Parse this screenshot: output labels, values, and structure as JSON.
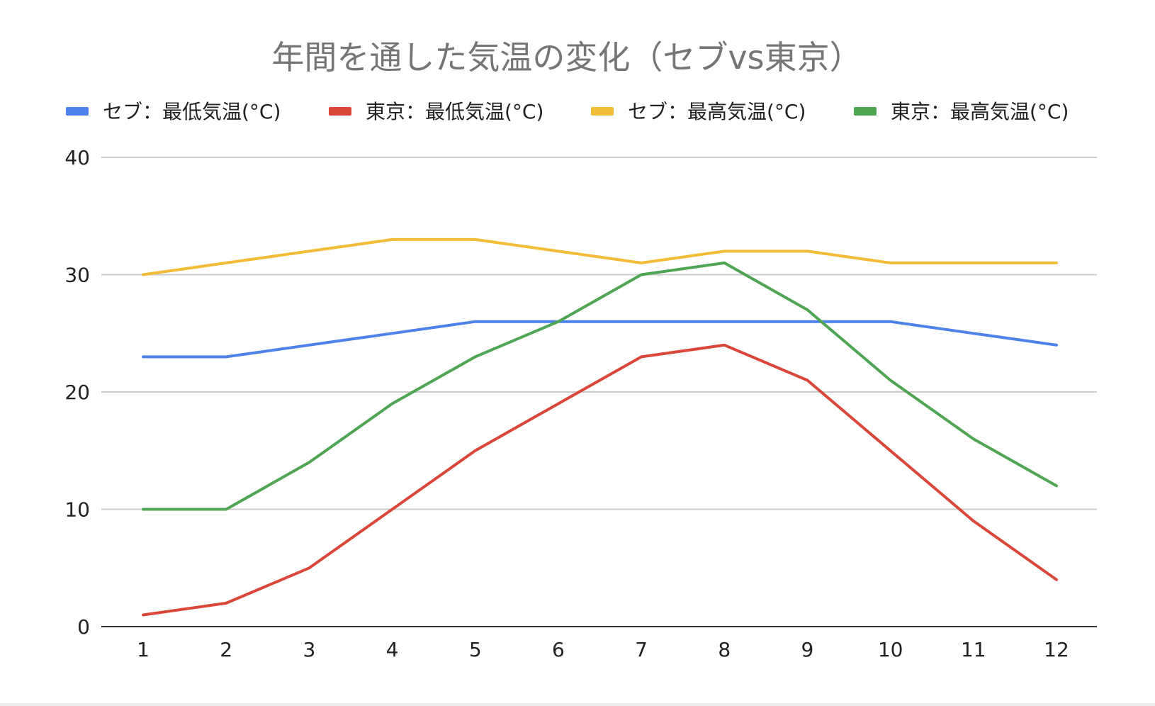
{
  "chart_data": {
    "type": "line",
    "title": "年間を通した気温の変化（セブvs東京）",
    "xlabel": "",
    "ylabel": "",
    "categories": [
      "1",
      "2",
      "3",
      "4",
      "5",
      "6",
      "7",
      "8",
      "9",
      "10",
      "11",
      "12"
    ],
    "ylim": [
      0,
      40
    ],
    "yticks": [
      "0",
      "10",
      "20",
      "30",
      "40"
    ],
    "grid": true,
    "legend_position": "top",
    "series": [
      {
        "name": "セブ：最低気温(°C)",
        "color": "#4f81ea",
        "values": [
          23,
          23,
          24,
          25,
          26,
          26,
          26,
          26,
          26,
          26,
          25,
          24
        ]
      },
      {
        "name": "東京：最低気温(°C)",
        "color": "#d9473b",
        "values": [
          1,
          2,
          5,
          10,
          15,
          19,
          23,
          24,
          21,
          15,
          9,
          4
        ]
      },
      {
        "name": "セブ：最高気温(°C)",
        "color": "#f1bd36",
        "values": [
          30,
          31,
          32,
          33,
          33,
          32,
          31,
          32,
          32,
          31,
          31,
          31
        ]
      },
      {
        "name": "東京：最高気温(°C)",
        "color": "#4ea553",
        "values": [
          10,
          10,
          14,
          19,
          23,
          26,
          30,
          31,
          27,
          21,
          16,
          12
        ]
      }
    ]
  }
}
